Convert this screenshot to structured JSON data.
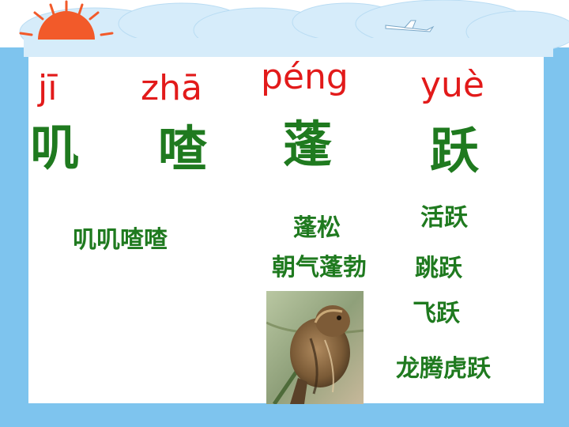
{
  "colors": {
    "pinyin": "#e21a1a",
    "hanzi": "#1f7a1f",
    "frame_blue": "#7ec4ee",
    "cloud": "#d6ecfa",
    "sun": "#f25a2a"
  },
  "pinyin": [
    "jī",
    "zhā",
    "péng",
    "yuè"
  ],
  "characters": [
    "叽",
    "喳",
    "蓬",
    "跃"
  ],
  "words": {
    "ji_zha": "叽叽喳喳",
    "peng_song": "蓬松",
    "zhao_qi": "朝气蓬勃",
    "huo_yue": "活跃",
    "tiao_yue": "跳跃",
    "fei_yue": "飞跃",
    "idiom": "龙腾虎跃"
  },
  "icons": {
    "decor": [
      "sun-icon",
      "cloud-icon",
      "airplane-icon"
    ],
    "photo": "bird-photo"
  }
}
